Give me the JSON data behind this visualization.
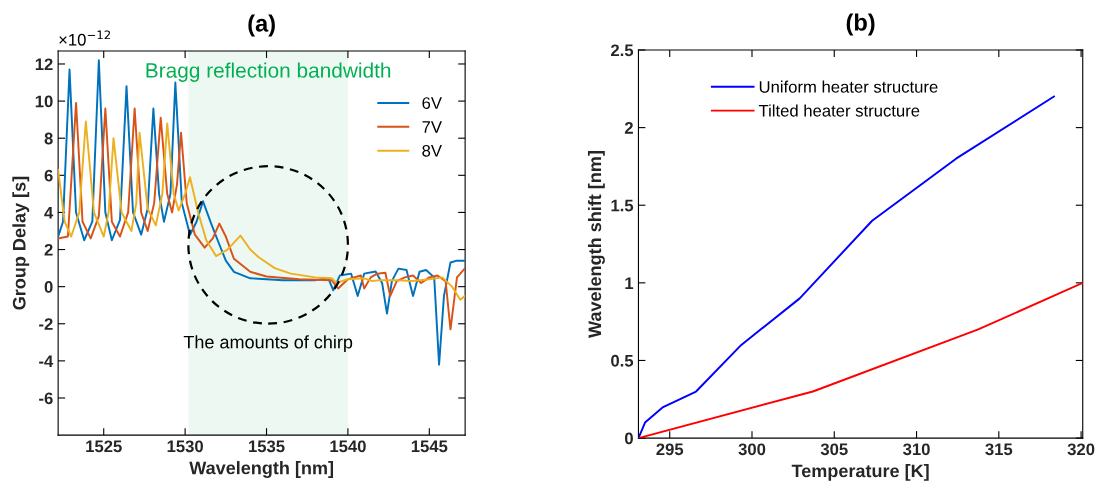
{
  "chart_data": [
    {
      "type": "line",
      "title": "(a)",
      "xlabel": "Wavelength [nm]",
      "ylabel": "Group Delay [s]",
      "xlim": [
        1522.2,
        1547.2
      ],
      "ylim": [
        -8,
        12.7
      ],
      "xticks": [
        1525,
        1530,
        1535,
        1540,
        1545
      ],
      "yticks": [
        -6,
        -4,
        -2,
        0,
        2,
        4,
        6,
        8,
        10,
        12
      ],
      "legend": "top right",
      "grid": false,
      "bands": [
        {
          "axis": "x",
          "from": 1530.2,
          "to": 1540,
          "label": "Bragg reflection bandwidth",
          "color": "#eef8f2"
        }
      ],
      "annotations": [
        "×10$^{−12}$",
        "The amounts of chirp"
      ],
      "series": [
        {
          "name": "6V",
          "color": "#0072bd",
          "x": [
            1522.2,
            1522.5,
            1522.9,
            1523.3,
            1523.8,
            1524.3,
            1524.7,
            1525.1,
            1525.5,
            1526.0,
            1526.4,
            1526.8,
            1527.3,
            1527.7,
            1528.05,
            1528.4,
            1528.7,
            1529.1,
            1529.4,
            1529.8,
            1530.3,
            1530.7,
            1531.1,
            1531.6,
            1532.0,
            1532.5,
            1533.0,
            1534.0,
            1536.0,
            1538.0,
            1538.8,
            1539.1,
            1539.5,
            1540.2,
            1540.6,
            1541.0,
            1541.7,
            1542.1,
            1542.4,
            1542.7,
            1543.1,
            1543.6,
            1544.0,
            1544.4,
            1544.8,
            1545.3,
            1545.6,
            1545.9,
            1546.3,
            1546.7,
            1547.2
          ],
          "values": [
            2.7,
            3.5,
            11.7,
            4.0,
            2.5,
            3.5,
            12.2,
            4.0,
            2.5,
            3.6,
            10.8,
            4.0,
            2.8,
            4.2,
            9.6,
            5.0,
            3.5,
            5.0,
            11.0,
            4.5,
            2.8,
            3.5,
            4.6,
            3.4,
            2.5,
            1.4,
            0.8,
            0.45,
            0.35,
            0.35,
            0.45,
            -0.2,
            0.6,
            0.7,
            -0.5,
            0.7,
            0.82,
            0.2,
            -1.45,
            0.3,
            0.97,
            0.9,
            -0.5,
            0.8,
            0.9,
            0.5,
            -4.2,
            -0.5,
            1.3,
            1.4,
            1.4
          ]
        },
        {
          "name": "7V",
          "color": "#d95319",
          "x": [
            1522.2,
            1522.8,
            1523.3,
            1523.7,
            1524.2,
            1524.7,
            1525.1,
            1525.5,
            1526.0,
            1526.5,
            1526.9,
            1527.3,
            1527.7,
            1528.1,
            1528.5,
            1528.9,
            1529.2,
            1529.5,
            1529.75,
            1530.1,
            1530.6,
            1531.2,
            1531.7,
            1532.1,
            1532.5,
            1533.0,
            1534.0,
            1535.0,
            1537.0,
            1539.0,
            1539.4,
            1540.0,
            1540.8,
            1541.0,
            1541.4,
            1541.8,
            1542.3,
            1542.6,
            1543.0,
            1543.5,
            1544.0,
            1544.5,
            1545.0,
            1545.5,
            1546.0,
            1546.3,
            1546.7,
            1547.2
          ],
          "values": [
            2.6,
            2.7,
            9.9,
            3.5,
            2.6,
            3.8,
            9.6,
            3.5,
            2.7,
            4.0,
            9.6,
            4.0,
            3.0,
            4.5,
            9.1,
            5.0,
            4.0,
            5.5,
            8.3,
            4.5,
            2.8,
            2.1,
            2.6,
            3.4,
            2.7,
            1.5,
            0.8,
            0.55,
            0.4,
            0.35,
            -0.1,
            0.4,
            0.6,
            -0.1,
            0.5,
            0.7,
            0.75,
            -0.5,
            0.3,
            0.5,
            0.6,
            0.2,
            0.5,
            0.6,
            0.3,
            -2.3,
            0.5,
            1.0
          ]
        },
        {
          "name": "8V",
          "color": "#edb120",
          "x": [
            1522.2,
            1522.6,
            1523.0,
            1523.5,
            1523.9,
            1524.4,
            1525.0,
            1525.3,
            1525.6,
            1526.1,
            1526.7,
            1527.0,
            1527.2,
            1527.7,
            1528.2,
            1528.6,
            1528.9,
            1529.3,
            1529.6,
            1530.0,
            1530.3,
            1530.8,
            1531.3,
            1531.9,
            1532.6,
            1533.4,
            1534.0,
            1534.5,
            1535.5,
            1536.5,
            1538.0,
            1539.0,
            1539.3,
            1540.0,
            1541.0,
            1541.5,
            1542.0,
            1543.0,
            1544.0,
            1545.0,
            1545.8,
            1546.4,
            1546.9,
            1547.2
          ],
          "values": [
            6.3,
            3.5,
            2.7,
            4.0,
            8.9,
            4.0,
            2.7,
            4.0,
            8.0,
            4.0,
            3.0,
            4.5,
            8.3,
            4.2,
            3.3,
            5.0,
            8.8,
            5.0,
            4.1,
            5.0,
            5.9,
            4.0,
            2.5,
            1.65,
            2.0,
            2.75,
            2.0,
            1.6,
            1.0,
            0.7,
            0.5,
            0.45,
            0.2,
            0.4,
            0.45,
            0.3,
            0.35,
            0.35,
            0.3,
            0.4,
            0.5,
            0.0,
            -0.7,
            -0.5
          ]
        }
      ]
    },
    {
      "type": "line",
      "title": "(b)",
      "xlabel": "Temperature [K]",
      "ylabel": "Wavelength shift [nm]",
      "xlim": [
        293.1,
        320.1
      ],
      "ylim": [
        0,
        2.5
      ],
      "xticks": [
        295,
        300,
        305,
        310,
        315,
        320
      ],
      "yticks": [
        0,
        0.5,
        1,
        1.5,
        2,
        2.5
      ],
      "legend": "top",
      "grid": false,
      "series": [
        {
          "name": "Uniform heater structure",
          "color": "#0000ff",
          "x": [
            293.1,
            293.5,
            294.6,
            296.6,
            299.35,
            302.9,
            307.3,
            312.4,
            318.35
          ],
          "values": [
            0,
            0.1,
            0.2,
            0.3,
            0.6,
            0.9,
            1.4,
            1.8,
            2.2
          ]
        },
        {
          "name": "Tilted heater structure",
          "color": "#ff0000",
          "x": [
            293.1,
            303.7,
            313.75,
            320.1
          ],
          "values": [
            0,
            0.3,
            0.7,
            1.0
          ]
        }
      ]
    }
  ]
}
